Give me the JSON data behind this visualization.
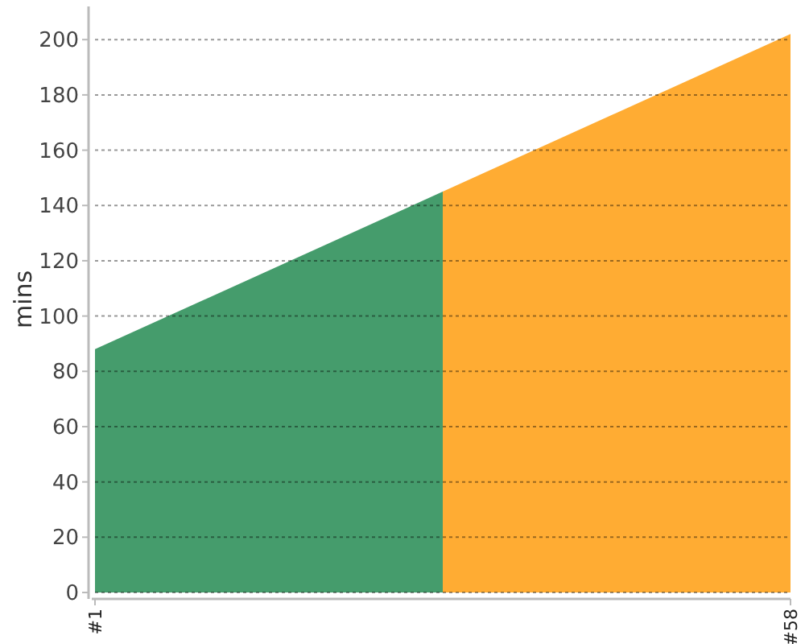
{
  "chart_data": {
    "type": "area",
    "ylabel": "mins",
    "xlim": [
      1,
      58
    ],
    "xticks": [
      {
        "value": 1,
        "label": "#1"
      },
      {
        "value": 58,
        "label": "#58"
      }
    ],
    "ylim": [
      0,
      212
    ],
    "yticks": [
      0,
      20,
      40,
      60,
      80,
      100,
      120,
      140,
      160,
      180,
      200
    ],
    "grid": "y",
    "series": [
      {
        "color": "#459c6c",
        "x": [
          1,
          29.5
        ],
        "values": [
          88,
          145
        ]
      },
      {
        "color": "#ffac33",
        "x": [
          29.5,
          58
        ],
        "values": [
          145,
          202
        ]
      }
    ]
  }
}
